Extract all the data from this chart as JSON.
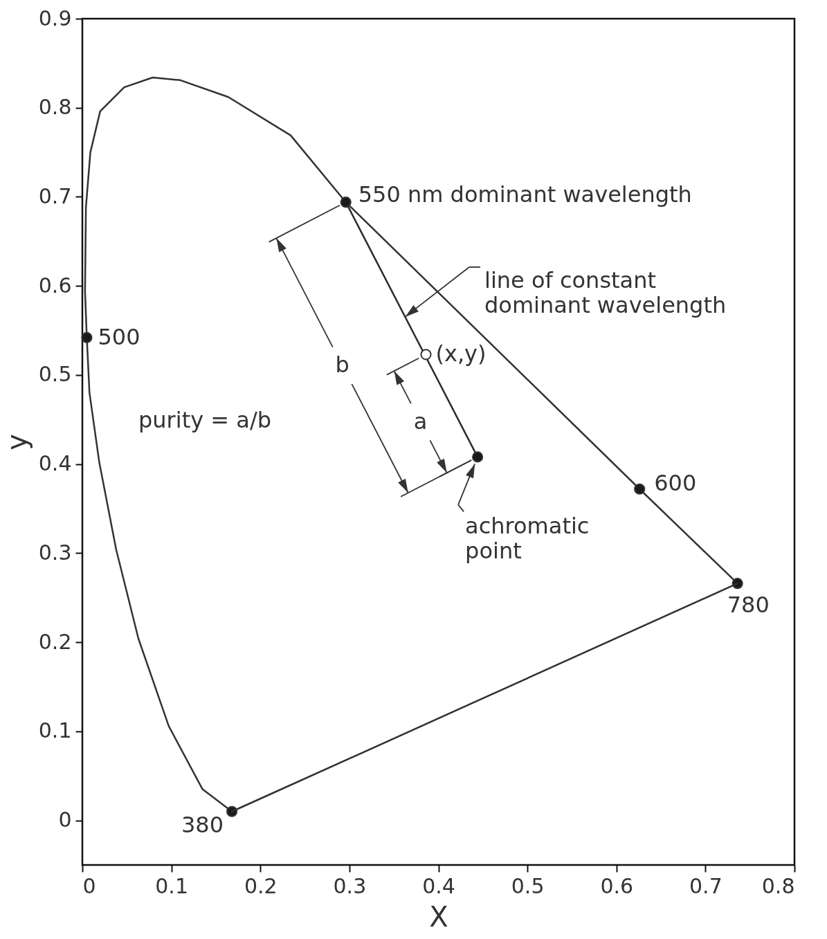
{
  "chart_data": {
    "type": "line",
    "xlabel": "X",
    "ylabel": "y",
    "xlim": [
      0,
      0.8
    ],
    "ylim": [
      -0.05,
      0.9
    ],
    "xticks": [
      0,
      0.1,
      0.2,
      0.3,
      0.4,
      0.5,
      0.6,
      0.7,
      0.8
    ],
    "yticks": [
      0,
      0.1,
      0.2,
      0.3,
      0.4,
      0.5,
      0.6,
      0.7,
      0.8,
      0.9
    ],
    "grid": false,
    "marker": "none",
    "line_style": "solid",
    "series": [
      {
        "color": "#333333",
        "x": [
          0.168,
          0.135,
          0.097,
          0.063,
          0.038,
          0.019,
          0.008,
          0.005,
          0.003,
          0.004,
          0.009,
          0.02,
          0.047,
          0.079,
          0.11,
          0.164,
          0.234,
          0.296,
          0.626,
          0.736
        ],
        "values": [
          0.01,
          0.035,
          0.106,
          0.204,
          0.304,
          0.402,
          0.48,
          0.542,
          0.594,
          0.688,
          0.75,
          0.796,
          0.823,
          0.834,
          0.831,
          0.812,
          0.769,
          0.694,
          0.372,
          0.266
        ]
      },
      {
        "color": "#2b2b2b",
        "x": [
          0.296,
          0.444
        ],
        "values": [
          0.694,
          0.408
        ]
      },
      {
        "type": "scatter",
        "marker": "circle",
        "color": "#1a1a1a",
        "x": [
          0.005,
          0.296,
          0.626,
          0.736,
          0.168,
          0.444
        ],
        "values": [
          0.542,
          0.694,
          0.372,
          0.266,
          0.01,
          0.408
        ]
      },
      {
        "type": "scatter",
        "marker": "circle",
        "color": "#ffffff",
        "x": [
          0.386
        ],
        "values": [
          0.523
        ]
      },
      {
        "color": "#303030",
        "x": [
          0.736,
          0.168
        ],
        "values": [
          0.266,
          0.01
        ]
      }
    ],
    "annotations": [
      {
        "text": "550 nm  dominant wavelength",
        "x": 0.296,
        "y": 0.694
      },
      {
        "text": "500",
        "x": 0.005,
        "y": 0.542
      },
      "purity = a/b",
      "line of constant\ndominant wavelength",
      {
        "text": "(x,y)",
        "x": 0.386,
        "y": 0.523
      },
      "a",
      "b",
      {
        "text": "achromatic\npoint",
        "x": 0.444,
        "y": 0.408
      },
      {
        "text": "600",
        "x": 0.626,
        "y": 0.372
      },
      {
        "text": "780",
        "x": 0.736,
        "y": 0.266
      },
      {
        "text": "380",
        "x": 0.168,
        "y": 0.01
      }
    ]
  }
}
